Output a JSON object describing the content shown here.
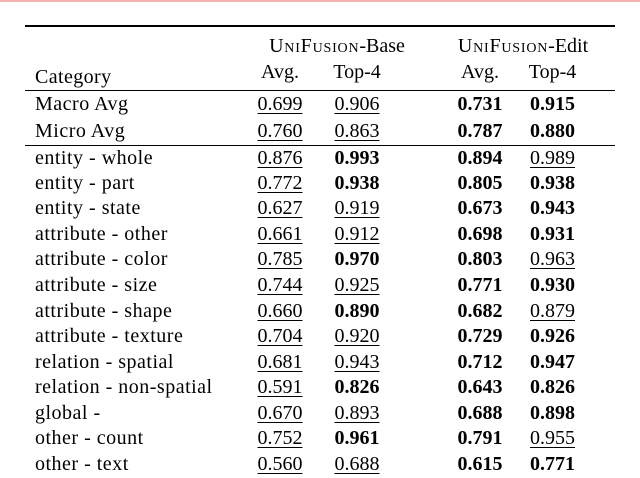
{
  "page": {
    "background": "#ffffff",
    "top_border_color": "#f2b4b0",
    "text_color": "#000000"
  },
  "table": {
    "category_header": "Category",
    "groups": [
      {
        "smallcaps": "UniFusion",
        "suffix": "-Base",
        "sub_avg": "Avg.",
        "sub_top4": "Top-4"
      },
      {
        "smallcaps": "UniFusion",
        "suffix": "-Edit",
        "sub_avg": "Avg.",
        "sub_top4": "Top-4"
      }
    ],
    "summary_rows": [
      {
        "category": "Macro Avg",
        "values": [
          {
            "value": "0.699",
            "style": "underline"
          },
          {
            "value": "0.906",
            "style": "underline"
          },
          {
            "value": "0.731",
            "style": "bold"
          },
          {
            "value": "0.915",
            "style": "bold"
          }
        ]
      },
      {
        "category": "Micro Avg",
        "values": [
          {
            "value": "0.760",
            "style": "underline"
          },
          {
            "value": "0.863",
            "style": "underline"
          },
          {
            "value": "0.787",
            "style": "bold"
          },
          {
            "value": "0.880",
            "style": "bold"
          }
        ]
      }
    ],
    "body_rows": [
      {
        "category": "entity - whole",
        "values": [
          {
            "value": "0.876",
            "style": "underline"
          },
          {
            "value": "0.993",
            "style": "bold"
          },
          {
            "value": "0.894",
            "style": "bold"
          },
          {
            "value": "0.989",
            "style": "underline"
          }
        ]
      },
      {
        "category": "entity - part",
        "values": [
          {
            "value": "0.772",
            "style": "underline"
          },
          {
            "value": "0.938",
            "style": "bold"
          },
          {
            "value": "0.805",
            "style": "bold"
          },
          {
            "value": "0.938",
            "style": "bold"
          }
        ]
      },
      {
        "category": "entity - state",
        "values": [
          {
            "value": "0.627",
            "style": "underline"
          },
          {
            "value": "0.919",
            "style": "underline"
          },
          {
            "value": "0.673",
            "style": "bold"
          },
          {
            "value": "0.943",
            "style": "bold"
          }
        ]
      },
      {
        "category": "attribute - other",
        "values": [
          {
            "value": "0.661",
            "style": "underline"
          },
          {
            "value": "0.912",
            "style": "underline"
          },
          {
            "value": "0.698",
            "style": "bold"
          },
          {
            "value": "0.931",
            "style": "bold"
          }
        ]
      },
      {
        "category": "attribute - color",
        "values": [
          {
            "value": "0.785",
            "style": "underline"
          },
          {
            "value": "0.970",
            "style": "bold"
          },
          {
            "value": "0.803",
            "style": "bold"
          },
          {
            "value": "0.963",
            "style": "underline"
          }
        ]
      },
      {
        "category": "attribute - size",
        "values": [
          {
            "value": "0.744",
            "style": "underline"
          },
          {
            "value": "0.925",
            "style": "underline"
          },
          {
            "value": "0.771",
            "style": "bold"
          },
          {
            "value": "0.930",
            "style": "bold"
          }
        ]
      },
      {
        "category": "attribute - shape",
        "values": [
          {
            "value": "0.660",
            "style": "underline"
          },
          {
            "value": "0.890",
            "style": "bold"
          },
          {
            "value": "0.682",
            "style": "bold"
          },
          {
            "value": "0.879",
            "style": "underline"
          }
        ]
      },
      {
        "category": "attribute - texture",
        "values": [
          {
            "value": "0.704",
            "style": "underline"
          },
          {
            "value": "0.920",
            "style": "underline"
          },
          {
            "value": "0.729",
            "style": "bold"
          },
          {
            "value": "0.926",
            "style": "bold"
          }
        ]
      },
      {
        "category": "relation - spatial",
        "values": [
          {
            "value": "0.681",
            "style": "underline"
          },
          {
            "value": "0.943",
            "style": "underline"
          },
          {
            "value": "0.712",
            "style": "bold"
          },
          {
            "value": "0.947",
            "style": "bold"
          }
        ]
      },
      {
        "category": "relation - non-spatial",
        "values": [
          {
            "value": "0.591",
            "style": "underline"
          },
          {
            "value": "0.826",
            "style": "bold"
          },
          {
            "value": "0.643",
            "style": "bold"
          },
          {
            "value": "0.826",
            "style": "bold"
          }
        ]
      },
      {
        "category": "global -",
        "values": [
          {
            "value": "0.670",
            "style": "underline"
          },
          {
            "value": "0.893",
            "style": "underline"
          },
          {
            "value": "0.688",
            "style": "bold"
          },
          {
            "value": "0.898",
            "style": "bold"
          }
        ]
      },
      {
        "category": "other - count",
        "values": [
          {
            "value": "0.752",
            "style": "underline"
          },
          {
            "value": "0.961",
            "style": "bold"
          },
          {
            "value": "0.791",
            "style": "bold"
          },
          {
            "value": "0.955",
            "style": "underline"
          }
        ]
      },
      {
        "category": "other - text",
        "values": [
          {
            "value": "0.560",
            "style": "underline"
          },
          {
            "value": "0.688",
            "style": "underline"
          },
          {
            "value": "0.615",
            "style": "bold"
          },
          {
            "value": "0.771",
            "style": "bold"
          }
        ]
      }
    ]
  }
}
